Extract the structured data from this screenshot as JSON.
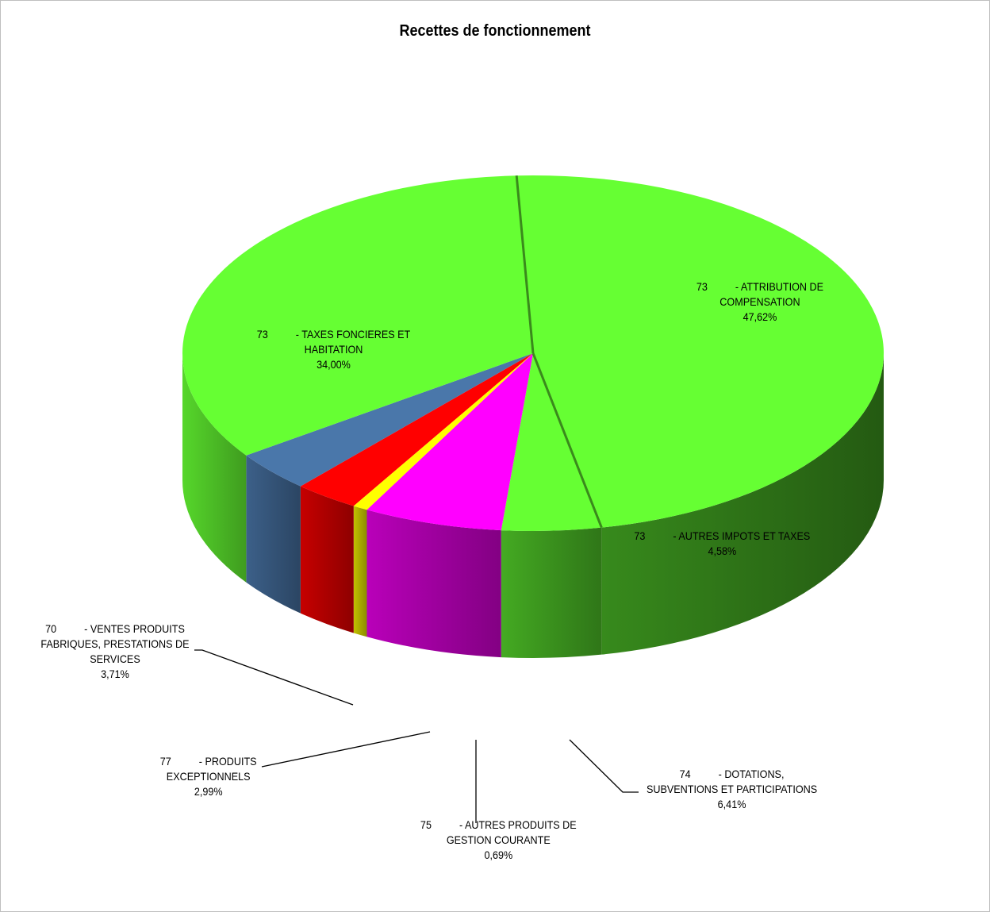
{
  "chart_data": {
    "type": "pie",
    "title": "Recettes de fonctionnement",
    "slices": [
      {
        "code": "73",
        "label": "- ATTRIBUTION DE\nCOMPENSATION",
        "value": 47.62,
        "value_label": "47,62%",
        "color": "#66ff33"
      },
      {
        "code": "73",
        "label": "- AUTRES IMPOTS ET TAXES",
        "value": 4.58,
        "value_label": "4,58%",
        "color": "#66ff33"
      },
      {
        "code": "74",
        "label": "- DOTATIONS,\nSUBVENTIONS ET PARTICIPATIONS",
        "value": 6.41,
        "value_label": "6,41%",
        "color": "#ff00ff"
      },
      {
        "code": "75",
        "label": "- AUTRES PRODUITS DE\nGESTION COURANTE",
        "value": 0.69,
        "value_label": "0,69%",
        "color": "#ffff00"
      },
      {
        "code": "77",
        "label": "- PRODUITS\nEXCEPTIONNELS",
        "value": 2.99,
        "value_label": "2,99%",
        "color": "#ff0000"
      },
      {
        "code": "70",
        "label": "- VENTES PRODUITS\nFABRIQUES, PRESTATIONS DE\nSERVICES",
        "value": 3.71,
        "value_label": "3,71%",
        "color": "#4a77aa"
      },
      {
        "code": "73",
        "label": "- TAXES FONCIERES ET\nHABITATION",
        "value": 34.0,
        "value_label": "34,00%",
        "color": "#66ff33"
      }
    ],
    "legend": "none"
  }
}
